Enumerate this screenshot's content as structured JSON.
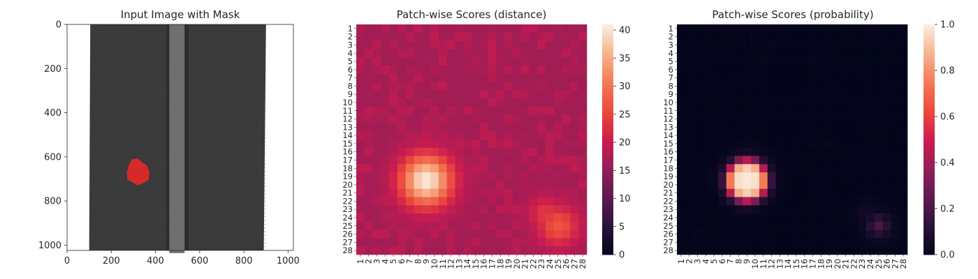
{
  "chart_data": [
    {
      "type": "image",
      "title": "Input Image with Mask",
      "x_ticks": [
        "0",
        "200",
        "400",
        "600",
        "800",
        "1000"
      ],
      "y_ticks": [
        "0",
        "200",
        "400",
        "600",
        "800",
        "1000"
      ],
      "xlim": [
        0,
        1024
      ],
      "ylim": [
        1024,
        0
      ],
      "image_description_colors": {
        "zipper": "#3a3a3a",
        "background": "#ffffff",
        "mask": "#d42a2a"
      },
      "mask_region_center": [
        320,
        670
      ]
    },
    {
      "type": "heatmap",
      "title": "Patch-wise Scores (distance)",
      "grid_size": 28,
      "row_labels": [
        "1",
        "2",
        "3",
        "4",
        "5",
        "6",
        "7",
        "8",
        "9",
        "10",
        "11",
        "12",
        "13",
        "14",
        "15",
        "16",
        "17",
        "18",
        "19",
        "20",
        "21",
        "22",
        "23",
        "24",
        "25",
        "26",
        "27",
        "28"
      ],
      "col_labels": [
        "1",
        "2",
        "3",
        "4",
        "5",
        "6",
        "7",
        "8",
        "9",
        "10",
        "11",
        "12",
        "13",
        "14",
        "15",
        "16",
        "17",
        "18",
        "19",
        "20",
        "21",
        "22",
        "23",
        "24",
        "25",
        "26",
        "27",
        "28"
      ],
      "colorbar_ticks": [
        "0",
        "5",
        "10",
        "15",
        "20",
        "25",
        "30",
        "35",
        "40"
      ],
      "vmin": 0,
      "vmax": 41,
      "colormap": "rocket",
      "baseline": 17,
      "hotspots": [
        {
          "row": 19.5,
          "col": 9.0,
          "peak": 41,
          "spread": 2.2
        },
        {
          "row": 25.0,
          "col": 25.0,
          "peak": 27,
          "spread": 1.8
        },
        {
          "row": 23.5,
          "col": 23.5,
          "peak": 24,
          "spread": 1.5
        }
      ]
    },
    {
      "type": "heatmap",
      "title": "Patch-wise Scores (probability)",
      "grid_size": 28,
      "row_labels": [
        "1",
        "2",
        "3",
        "4",
        "5",
        "6",
        "7",
        "8",
        "9",
        "10",
        "11",
        "12",
        "13",
        "14",
        "15",
        "16",
        "17",
        "18",
        "19",
        "20",
        "21",
        "22",
        "23",
        "24",
        "25",
        "26",
        "27",
        "28"
      ],
      "col_labels": [
        "1",
        "2",
        "3",
        "4",
        "5",
        "6",
        "7",
        "8",
        "9",
        "10",
        "11",
        "12",
        "13",
        "14",
        "15",
        "16",
        "17",
        "18",
        "19",
        "20",
        "21",
        "22",
        "23",
        "24",
        "25",
        "26",
        "27",
        "28"
      ],
      "colorbar_ticks": [
        "0.0",
        "0.2",
        "0.4",
        "0.6",
        "0.8",
        "1.0"
      ],
      "vmin": 0,
      "vmax": 1,
      "colormap": "rocket",
      "threshold": 17,
      "scale": 6
    }
  ]
}
